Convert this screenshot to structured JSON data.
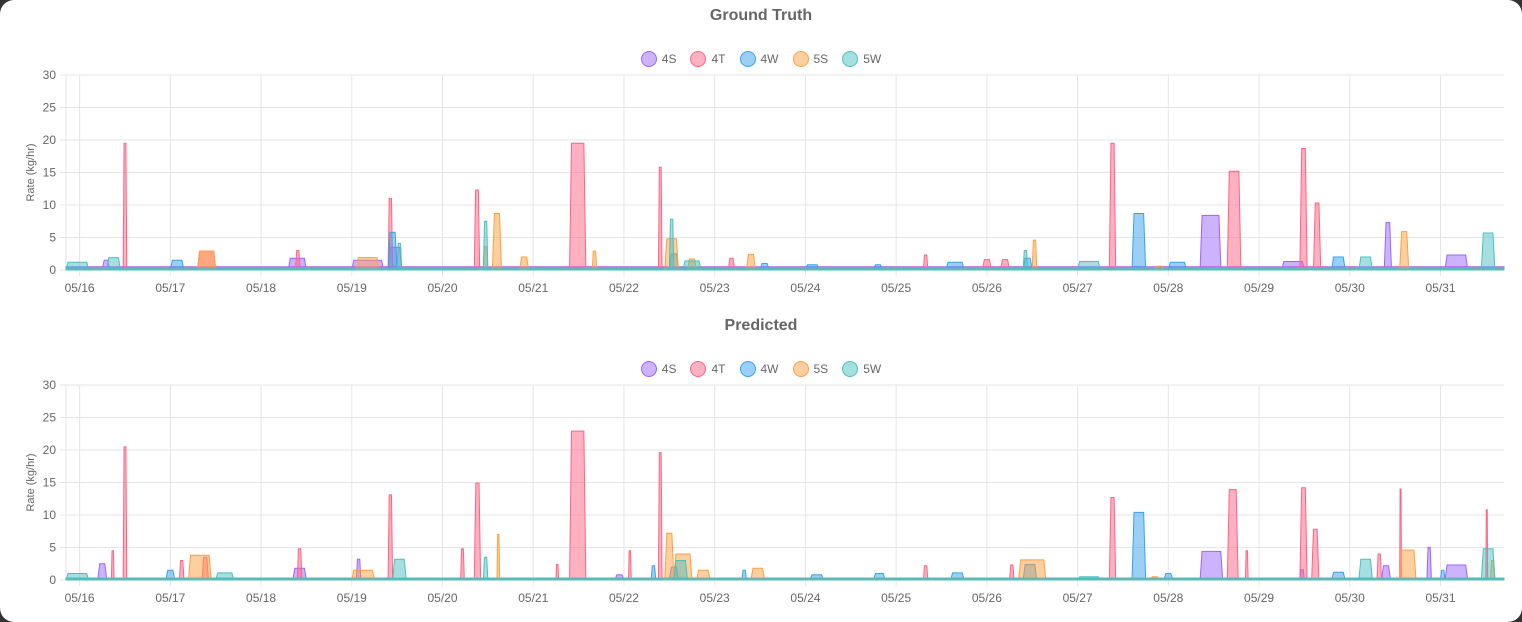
{
  "charts": [
    {
      "title": "Ground Truth",
      "legend": [
        {
          "label": "4S",
          "color": "#9966ff"
        },
        {
          "label": "4T",
          "color": "#ff6384"
        },
        {
          "label": "4W",
          "color": "#36a2eb"
        },
        {
          "label": "5S",
          "color": "#ff9f40"
        },
        {
          "label": "5W",
          "color": "#4bc0c0"
        }
      ],
      "ylabel": "Rate (kg/hr)"
    },
    {
      "title": "Predicted",
      "legend": [
        {
          "label": "4S",
          "color": "#9966ff"
        },
        {
          "label": "4T",
          "color": "#ff6384"
        },
        {
          "label": "4W",
          "color": "#36a2eb"
        },
        {
          "label": "5S",
          "color": "#ff9f40"
        },
        {
          "label": "5W",
          "color": "#4bc0c0"
        }
      ],
      "ylabel": "Rate (kg/hr)"
    }
  ],
  "chart_data": [
    {
      "type": "area",
      "title": "Ground Truth",
      "ylabel": "Rate (kg/hr)",
      "ylim": [
        0,
        30
      ],
      "yticks": [
        0,
        5,
        10,
        15,
        20,
        25,
        30
      ],
      "xlim": [
        15.85,
        31.7
      ],
      "xticks": [
        {
          "label": "05/16",
          "x": 16
        },
        {
          "label": "05/17",
          "x": 17
        },
        {
          "label": "05/18",
          "x": 18
        },
        {
          "label": "05/19",
          "x": 19
        },
        {
          "label": "05/20",
          "x": 20
        },
        {
          "label": "05/21",
          "x": 21
        },
        {
          "label": "05/22",
          "x": 22
        },
        {
          "label": "05/23",
          "x": 23
        },
        {
          "label": "05/24",
          "x": 24
        },
        {
          "label": "05/25",
          "x": 25
        },
        {
          "label": "05/26",
          "x": 26
        },
        {
          "label": "05/27",
          "x": 27
        },
        {
          "label": "05/28",
          "x": 28
        },
        {
          "label": "05/29",
          "x": 29
        },
        {
          "label": "05/30",
          "x": 30
        },
        {
          "label": "05/31",
          "x": 31
        }
      ],
      "grid": true,
      "legend_position": "top",
      "series": [
        {
          "name": "4S",
          "color": "#9966ff",
          "baseline": 0.5,
          "events": [
            [
              16.25,
              16.33,
              1.5
            ],
            [
              18.3,
              18.5,
              1.8
            ],
            [
              19.0,
              19.35,
              1.5
            ],
            [
              19.4,
              19.55,
              3.5
            ],
            [
              27.6,
              27.7,
              0.5
            ],
            [
              28.35,
              28.58,
              8.4
            ],
            [
              29.25,
              29.5,
              1.3
            ],
            [
              30.38,
              30.46,
              7.3
            ],
            [
              31.05,
              31.3,
              2.3
            ]
          ]
        },
        {
          "name": "4T",
          "color": "#ff6384",
          "baseline": 0.4,
          "events": [
            [
              16.48,
              16.52,
              19.5
            ],
            [
              17.3,
              17.5,
              2.9
            ],
            [
              18.38,
              18.43,
              3.0
            ],
            [
              19.4,
              19.45,
              11.0
            ],
            [
              20.35,
              20.41,
              12.3
            ],
            [
              21.4,
              21.58,
              19.5
            ],
            [
              22.38,
              22.42,
              15.8
            ],
            [
              23.15,
              23.22,
              1.8
            ],
            [
              25.3,
              25.35,
              2.3
            ],
            [
              25.95,
              26.05,
              1.6
            ],
            [
              26.15,
              26.25,
              1.6
            ],
            [
              27.35,
              27.42,
              19.5
            ],
            [
              28.65,
              28.8,
              15.2
            ],
            [
              29.45,
              29.53,
              18.7
            ],
            [
              29.6,
              29.68,
              10.3
            ],
            [
              30.0,
              30.05,
              0.5
            ]
          ]
        },
        {
          "name": "4W",
          "color": "#36a2eb",
          "baseline": 0.2,
          "events": [
            [
              17.0,
              17.15,
              1.5
            ],
            [
              19.4,
              19.5,
              5.8
            ],
            [
              22.5,
              22.6,
              2.5
            ],
            [
              23.5,
              23.6,
              1.0
            ],
            [
              24.0,
              24.15,
              0.8
            ],
            [
              24.75,
              24.85,
              0.8
            ],
            [
              25.55,
              25.75,
              1.2
            ],
            [
              26.4,
              26.5,
              1.8
            ],
            [
              27.6,
              27.75,
              8.7
            ],
            [
              28.0,
              28.2,
              1.2
            ],
            [
              29.8,
              29.95,
              2.0
            ]
          ]
        },
        {
          "name": "5S",
          "color": "#ff9f40",
          "baseline": 0.3,
          "events": [
            [
              17.3,
              17.5,
              2.9
            ],
            [
              19.05,
              19.3,
              1.9
            ],
            [
              20.45,
              20.5,
              3.6
            ],
            [
              20.55,
              20.65,
              8.7
            ],
            [
              20.85,
              20.95,
              2.0
            ],
            [
              21.65,
              21.7,
              2.9
            ],
            [
              22.45,
              22.6,
              4.8
            ],
            [
              22.7,
              22.8,
              1.7
            ],
            [
              23.35,
              23.45,
              2.4
            ],
            [
              26.5,
              26.55,
              4.6
            ],
            [
              27.85,
              27.95,
              0.6
            ],
            [
              30.55,
              30.65,
              5.9
            ]
          ]
        },
        {
          "name": "5W",
          "color": "#4bc0c0",
          "baseline": 0.3,
          "events": [
            [
              15.85,
              16.1,
              1.2
            ],
            [
              16.3,
              16.45,
              1.9
            ],
            [
              19.5,
              19.55,
              4.1
            ],
            [
              20.45,
              20.5,
              7.5
            ],
            [
              22.5,
              22.55,
              7.8
            ],
            [
              22.65,
              22.85,
              1.4
            ],
            [
              26.4,
              26.45,
              3.0
            ],
            [
              27.0,
              27.25,
              1.3
            ],
            [
              30.1,
              30.25,
              2.0
            ],
            [
              31.45,
              31.6,
              5.7
            ]
          ]
        }
      ]
    },
    {
      "type": "area",
      "title": "Predicted",
      "ylabel": "Rate (kg/hr)",
      "ylim": [
        0,
        30
      ],
      "yticks": [
        0,
        5,
        10,
        15,
        20,
        25,
        30
      ],
      "xlim": [
        15.85,
        31.7
      ],
      "xticks": [
        {
          "label": "05/16",
          "x": 16
        },
        {
          "label": "05/17",
          "x": 17
        },
        {
          "label": "05/18",
          "x": 18
        },
        {
          "label": "05/19",
          "x": 19
        },
        {
          "label": "05/20",
          "x": 20
        },
        {
          "label": "05/21",
          "x": 21
        },
        {
          "label": "05/22",
          "x": 22
        },
        {
          "label": "05/23",
          "x": 23
        },
        {
          "label": "05/24",
          "x": 24
        },
        {
          "label": "05/25",
          "x": 25
        },
        {
          "label": "05/26",
          "x": 26
        },
        {
          "label": "05/27",
          "x": 27
        },
        {
          "label": "05/28",
          "x": 28
        },
        {
          "label": "05/29",
          "x": 29
        },
        {
          "label": "05/30",
          "x": 30
        },
        {
          "label": "05/31",
          "x": 31
        }
      ],
      "grid": true,
      "legend_position": "top",
      "series": [
        {
          "name": "4S",
          "color": "#9966ff",
          "baseline": 0.3,
          "events": [
            [
              16.2,
              16.3,
              2.5
            ],
            [
              18.35,
              18.5,
              1.8
            ],
            [
              19.05,
              19.1,
              3.2
            ],
            [
              21.9,
              22.0,
              0.8
            ],
            [
              28.35,
              28.6,
              4.4
            ],
            [
              29.45,
              29.5,
              1.6
            ],
            [
              30.35,
              30.45,
              2.2
            ],
            [
              30.85,
              30.9,
              5.0
            ],
            [
              31.05,
              31.3,
              2.3
            ]
          ]
        },
        {
          "name": "4T",
          "color": "#ff6384",
          "baseline": 0.2,
          "events": [
            [
              16.35,
              16.38,
              4.5
            ],
            [
              16.48,
              16.52,
              20.5
            ],
            [
              17.1,
              17.15,
              3.0
            ],
            [
              17.35,
              17.42,
              3.5
            ],
            [
              18.4,
              18.45,
              4.8
            ],
            [
              19.4,
              19.45,
              13.1
            ],
            [
              20.2,
              20.24,
              4.8
            ],
            [
              20.35,
              20.42,
              14.9
            ],
            [
              21.25,
              21.28,
              2.4
            ],
            [
              21.4,
              21.58,
              22.9
            ],
            [
              22.05,
              22.08,
              4.5
            ],
            [
              22.38,
              22.42,
              19.6
            ],
            [
              25.3,
              25.35,
              2.2
            ],
            [
              26.25,
              26.3,
              2.3
            ],
            [
              27.35,
              27.42,
              12.7
            ],
            [
              28.65,
              28.77,
              13.9
            ],
            [
              28.85,
              28.88,
              4.5
            ],
            [
              29.45,
              29.53,
              14.2
            ],
            [
              29.58,
              29.66,
              7.8
            ],
            [
              30.3,
              30.35,
              4.0
            ],
            [
              30.55,
              30.57,
              14.0
            ],
            [
              31.5,
              31.52,
              10.8
            ]
          ]
        },
        {
          "name": "4W",
          "color": "#36a2eb",
          "baseline": 0.2,
          "events": [
            [
              16.95,
              17.05,
              1.5
            ],
            [
              22.3,
              22.35,
              2.2
            ],
            [
              22.5,
              22.6,
              2.0
            ],
            [
              23.3,
              23.35,
              1.5
            ],
            [
              24.05,
              24.2,
              0.8
            ],
            [
              24.75,
              24.88,
              1.0
            ],
            [
              25.6,
              25.75,
              1.1
            ],
            [
              26.4,
              26.55,
              2.4
            ],
            [
              27.6,
              27.75,
              10.4
            ],
            [
              27.95,
              28.05,
              1.0
            ],
            [
              29.8,
              29.95,
              1.2
            ],
            [
              31.0,
              31.05,
              1.5
            ]
          ]
        },
        {
          "name": "5S",
          "color": "#ff9f40",
          "baseline": 0.3,
          "events": [
            [
              17.2,
              17.45,
              3.8
            ],
            [
              19.0,
              19.25,
              1.5
            ],
            [
              20.6,
              20.63,
              7.0
            ],
            [
              22.45,
              22.55,
              7.2
            ],
            [
              22.55,
              22.75,
              4.0
            ],
            [
              22.8,
              22.95,
              1.5
            ],
            [
              23.4,
              23.55,
              1.8
            ],
            [
              26.35,
              26.65,
              3.1
            ],
            [
              27.8,
              27.9,
              0.5
            ],
            [
              30.55,
              30.73,
              4.6
            ],
            [
              31.55,
              31.6,
              3.0
            ]
          ]
        },
        {
          "name": "5W",
          "color": "#4bc0c0",
          "baseline": 0.3,
          "events": [
            [
              15.85,
              16.1,
              1.0
            ],
            [
              17.5,
              17.7,
              1.1
            ],
            [
              19.45,
              19.6,
              3.2
            ],
            [
              20.45,
              20.5,
              3.5
            ],
            [
              22.55,
              22.7,
              3.0
            ],
            [
              27.0,
              27.25,
              0.5
            ],
            [
              30.1,
              30.25,
              3.2
            ],
            [
              31.45,
              31.6,
              4.8
            ]
          ]
        }
      ]
    }
  ]
}
